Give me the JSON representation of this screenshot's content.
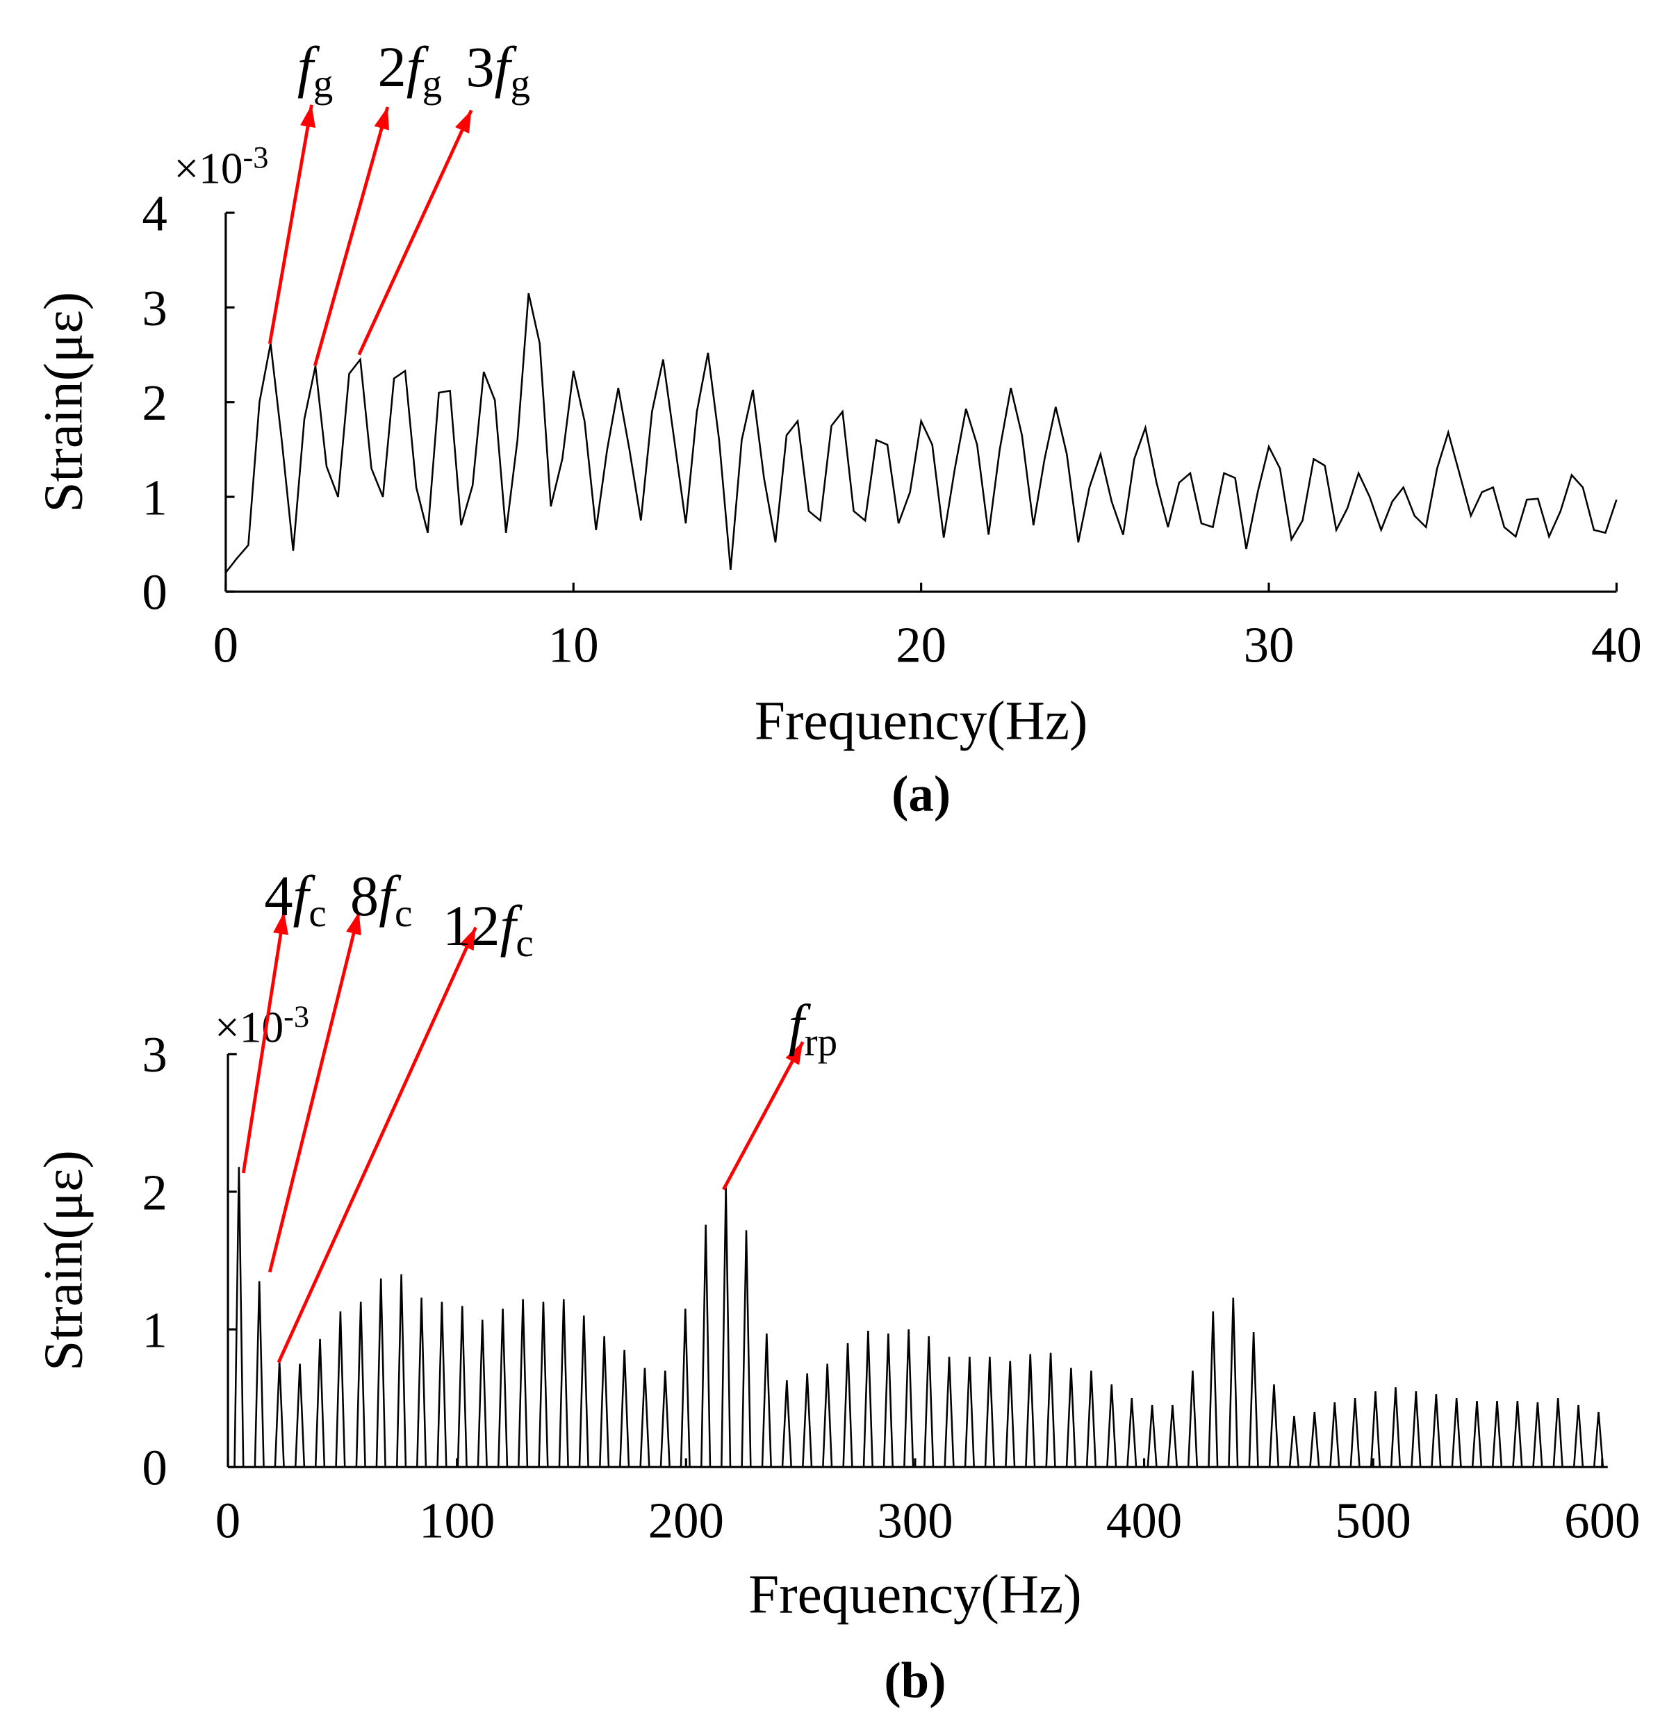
{
  "chart_data": [
    {
      "type": "line",
      "panel_label": "(a)",
      "xlabel": "Frequency(Hz)",
      "ylabel": "Strain(με)",
      "y_multiplier": "×10",
      "y_multiplier_exponent": "-3",
      "color": "#000000",
      "xlim": [
        0,
        40
      ],
      "ylim": [
        0,
        4
      ],
      "xticks": [
        0,
        10,
        20,
        30,
        40
      ],
      "yticks": [
        0,
        1,
        2,
        3,
        4
      ],
      "x": [
        0,
        0.32,
        0.65,
        0.97,
        1.29,
        1.61,
        1.94,
        2.26,
        2.58,
        2.9,
        3.23,
        3.55,
        3.87,
        4.19,
        4.52,
        4.84,
        5.16,
        5.48,
        5.81,
        6.13,
        6.45,
        6.77,
        7.1,
        7.42,
        7.74,
        8.06,
        8.39,
        8.71,
        9.03,
        9.35,
        9.68,
        10.0,
        10.32,
        10.65,
        10.97,
        11.29,
        11.61,
        11.94,
        12.26,
        12.58,
        12.9,
        13.23,
        13.55,
        13.87,
        14.19,
        14.52,
        14.84,
        15.16,
        15.48,
        15.81,
        16.13,
        16.45,
        16.77,
        17.1,
        17.42,
        17.74,
        18.06,
        18.39,
        18.71,
        19.03,
        19.35,
        19.68,
        20.0,
        20.32,
        20.65,
        20.97,
        21.29,
        21.61,
        21.94,
        22.26,
        22.58,
        22.9,
        23.23,
        23.55,
        23.87,
        24.19,
        24.52,
        24.84,
        25.16,
        25.48,
        25.81,
        26.13,
        26.45,
        26.77,
        27.1,
        27.42,
        27.74,
        28.06,
        28.39,
        28.71,
        29.03,
        29.35,
        29.68,
        30.0,
        30.32,
        30.65,
        30.97,
        31.29,
        31.61,
        31.94,
        32.26,
        32.58,
        32.9,
        33.23,
        33.55,
        33.87,
        34.19,
        34.52,
        34.84,
        35.16,
        35.48,
        35.81,
        36.13,
        36.45,
        36.77,
        37.1,
        37.42,
        37.74,
        38.06,
        38.39,
        38.71,
        39.03,
        39.35,
        39.68,
        40.0
      ],
      "values": [
        0.2,
        0.35,
        0.49,
        2.0,
        2.62,
        1.6,
        0.43,
        1.82,
        2.38,
        1.32,
        1.0,
        2.3,
        2.45,
        1.3,
        1.0,
        2.25,
        2.33,
        1.1,
        0.62,
        2.1,
        2.12,
        0.7,
        1.12,
        2.32,
        2.02,
        0.62,
        1.6,
        3.15,
        2.62,
        0.9,
        1.4,
        2.33,
        1.8,
        0.65,
        1.5,
        2.15,
        1.5,
        0.75,
        1.9,
        2.45,
        1.6,
        0.72,
        1.9,
        2.52,
        1.6,
        0.23,
        1.6,
        2.13,
        1.2,
        0.52,
        1.65,
        1.8,
        0.85,
        0.75,
        1.75,
        1.9,
        0.85,
        0.75,
        1.6,
        1.55,
        0.72,
        1.05,
        1.8,
        1.55,
        0.57,
        1.3,
        1.93,
        1.55,
        0.6,
        1.5,
        2.15,
        1.65,
        0.7,
        1.4,
        1.95,
        1.45,
        0.52,
        1.1,
        1.45,
        0.95,
        0.6,
        1.4,
        1.73,
        1.15,
        0.68,
        1.15,
        1.25,
        0.72,
        0.68,
        1.25,
        1.2,
        0.45,
        1.05,
        1.53,
        1.3,
        0.55,
        0.75,
        1.4,
        1.33,
        0.65,
        0.88,
        1.25,
        1.0,
        0.65,
        0.95,
        1.1,
        0.8,
        0.68,
        1.3,
        1.68,
        1.25,
        0.8,
        1.05,
        1.1,
        0.68,
        0.58,
        0.97,
        0.98,
        0.58,
        0.85,
        1.23,
        1.1,
        0.65,
        0.62,
        0.97
      ],
      "annotations": [
        {
          "symbol": "f",
          "subscript": "g"
        },
        {
          "prefix": "2",
          "symbol": "f",
          "subscript": "g"
        },
        {
          "prefix": "3",
          "symbol": "f",
          "subscript": "g"
        }
      ]
    },
    {
      "type": "stem",
      "panel_label": "(b)",
      "xlabel": "Frequency(Hz)",
      "ylabel": "Strain(με)",
      "y_multiplier": "×10",
      "y_multiplier_exponent": "-3",
      "color": "#000000",
      "xlim": [
        0,
        600
      ],
      "ylim": [
        0,
        3
      ],
      "xticks": [
        0,
        100,
        200,
        300,
        400,
        500,
        600
      ],
      "yticks": [
        0,
        1,
        2,
        3
      ],
      "x": [
        4.8,
        13.7,
        22.5,
        31.4,
        40.2,
        49.1,
        58.0,
        66.8,
        75.7,
        84.5,
        93.4,
        102.3,
        111.1,
        120.0,
        128.8,
        137.7,
        146.6,
        155.4,
        164.3,
        173.1,
        182.0,
        190.9,
        199.7,
        208.6,
        217.4,
        226.3,
        235.2,
        244.0,
        252.9,
        261.7,
        270.6,
        279.5,
        288.3,
        297.2,
        306.0,
        314.9,
        323.8,
        332.6,
        341.5,
        350.3,
        359.2,
        368.1,
        376.9,
        385.8,
        394.6,
        403.5,
        412.4,
        421.2,
        430.1,
        438.9,
        447.8,
        456.7,
        465.5,
        474.4,
        483.2,
        492.1,
        501.0,
        509.8,
        518.7,
        527.5,
        536.4,
        545.3,
        554.1,
        563.0,
        571.8,
        580.7,
        589.6,
        598.4
      ],
      "values": [
        2.18,
        1.35,
        0.77,
        0.75,
        0.93,
        1.13,
        1.2,
        1.37,
        1.4,
        1.23,
        1.2,
        1.17,
        1.07,
        1.15,
        1.22,
        1.2,
        1.22,
        1.1,
        0.95,
        0.85,
        0.72,
        0.7,
        1.15,
        1.76,
        2.03,
        1.72,
        0.97,
        0.63,
        0.68,
        0.75,
        0.9,
        0.99,
        0.97,
        1.0,
        0.95,
        0.8,
        0.8,
        0.8,
        0.77,
        0.82,
        0.83,
        0.72,
        0.7,
        0.6,
        0.5,
        0.45,
        0.45,
        0.7,
        1.13,
        1.23,
        0.98,
        0.6,
        0.37,
        0.4,
        0.47,
        0.5,
        0.55,
        0.58,
        0.55,
        0.53,
        0.5,
        0.48,
        0.48,
        0.48,
        0.47,
        0.5,
        0.45,
        0.4
      ],
      "annotations": [
        {
          "prefix": "4",
          "symbol": "f",
          "subscript": "c"
        },
        {
          "prefix": "8",
          "symbol": "f",
          "subscript": "c"
        },
        {
          "prefix": "12",
          "symbol": "f",
          "subscript": "c"
        },
        {
          "symbol": "f",
          "subscript": "rp"
        }
      ]
    }
  ]
}
